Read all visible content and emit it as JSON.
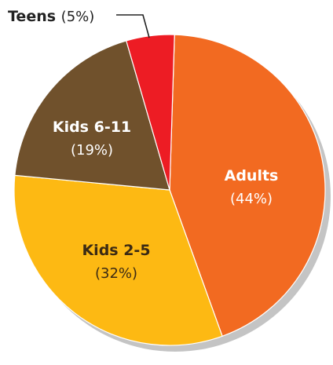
{
  "chart_data": {
    "type": "pie",
    "title": "",
    "slices": [
      {
        "name": "Adults",
        "percent_label": "(44%)",
        "value": 44,
        "color": "#f26a21",
        "text_color": "#ffffff",
        "pct_color": "#ffffff"
      },
      {
        "name": "Kids 2-5",
        "percent_label": "(32%)",
        "value": 32,
        "color": "#fdb913",
        "text_color": "#3b2a14",
        "pct_color": "#3b2a14"
      },
      {
        "name": "Kids 6-11",
        "percent_label": "(19%)",
        "value": 19,
        "color": "#70512c",
        "text_color": "#ffffff",
        "pct_color": "#ffffff"
      },
      {
        "name": "Teens",
        "percent_label": "(5%)",
        "value": 5,
        "color": "#ed1c24",
        "text_color": "#222222",
        "pct_color": "#222222"
      }
    ],
    "shadow_color": "#c4c4c4",
    "edge_color": "#ffffff",
    "legend": "none"
  }
}
